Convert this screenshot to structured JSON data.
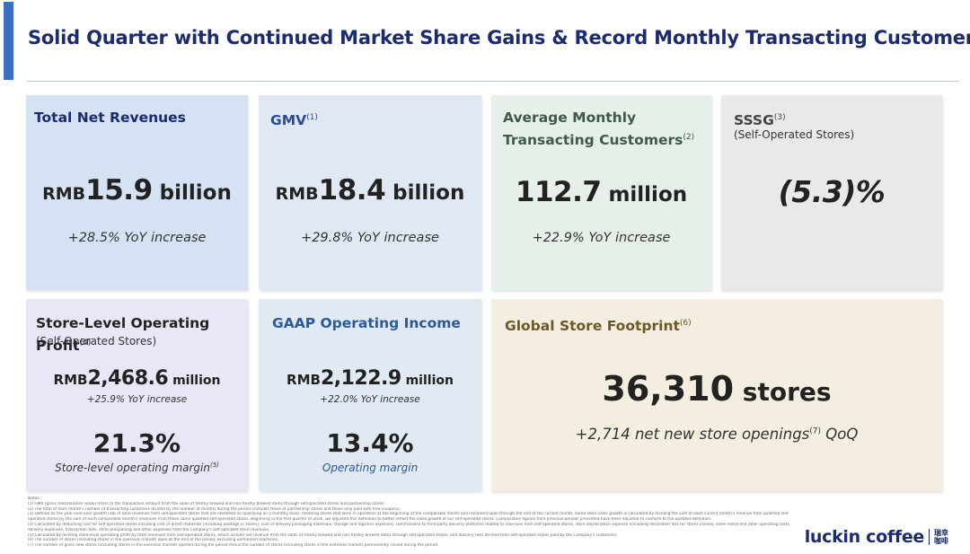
{
  "title": "Solid Quarter with Continued Market Share Gains & Record Monthly Transacting Customers",
  "colors": {
    "brand_navy": "#1c2a6e",
    "accent_blue": "#3b6fc4"
  },
  "cards": {
    "revenue": {
      "heading": "Total Net Revenues",
      "prefix": "RMB",
      "value": "15.9",
      "unit": " billion",
      "yoy": "+28.5% YoY increase"
    },
    "gmv": {
      "heading": "GMV",
      "footnote": "(1)",
      "prefix": "RMB",
      "value": "18.4",
      "unit": " billion",
      "yoy": "+29.8% YoY increase"
    },
    "amtc": {
      "heading_line1": "Average Monthly",
      "heading_line2": "Transacting Customers",
      "footnote": "(2)",
      "value": "112.7",
      "unit": " million",
      "yoy": "+22.9% YoY increase"
    },
    "sssg": {
      "heading": "SSSG",
      "footnote": "(3)",
      "subheading": "(Self-Operated Stores)",
      "value": "(5.3)%"
    },
    "store_profit": {
      "heading": "Store-Level Operating Profit",
      "footnote": "(4)",
      "subheading": "(Self-Operated Stores)",
      "prefix": "RMB",
      "value": "2,468.6",
      "unit": " million",
      "yoy": "+25.9% YoY increase",
      "margin": "21.3%",
      "margin_label": "Store-level operating margin",
      "margin_footnote": "(5)"
    },
    "gaap": {
      "heading": "GAAP Operating Income",
      "prefix": "RMB",
      "value": "2,122.9",
      "unit": " million",
      "yoy": "+22.0% YoY increase",
      "margin": "13.4%",
      "margin_label": "Operating margin"
    },
    "footprint": {
      "heading": "Global Store Footprint",
      "footnote": "(6)",
      "value": "36,310",
      "unit": " stores",
      "net_new_pre": "+2,714 net new store openings",
      "net_new_footnote": "(7)",
      "net_new_post": " QoQ"
    }
  },
  "notes": {
    "label": "Notes:",
    "lines": [
      "(1)    GMV (gross merchandise value) refers to the transaction amount from the sales of freshly brewed and non-freshly brewed items through self-operated stores and partnership stores.",
      "(2)    The total of each month's number of transacting customers divided by the number of months during the period (includes those of partnership stores and those only paid with free-coupons).",
      "(3)    Defined as the year-over-year growth rate of total revenues from self-operated stores that are identified as qualifying on a monthly basis, meaning stores that were in operation at the beginning of the comparable month and remained open through the end of the current month. Same-store sales growth is calculated by dividing the sum of each current month's revenue from qualified self-",
      "        operated stores by the sum of each comparable month's revenues from those same qualified self-operated stores. Beginning in the first quarter of 2026, we adjusted this definition to better reflect the sales growth of our self-operated stores. Comparative figures from previous periods presented have been adjusted to conform to the updated definition.",
      "(4)    Calculated by deducting cost for self-operated stores including cost of direct materials (including wastage in stores), cost of delivery packaging materials, storage and logistics expenses, commissions to third-party delivery platforms related to revenues from self-operated stores, store depreciation expense (including decoration loss for stores closed), store rental and other operating costs,",
      "        delivery expenses, transaction fees, store preopening and other expenses from the Company's self-operated store revenues.",
      "(5)    Calculated by dividing store-level operating profit by total revenues from self-operated stores, which include net revenue from the sales of freshly brewed and non-freshly brewed items through self-operated stores, and delivery fees derived from self-operated stores paid by the Company's customers.",
      "(6)    The number of stores (including stores in the overseas market) open at the end of the period, excluding unmanned machines.",
      "(7)    The number of gross new stores (including stores in the overseas market) opened during the period minus the number of stores (including stores in the overseas market) permanently closed during the period."
    ]
  },
  "logo": {
    "text": "luckin coffee",
    "cn_line1": "瑞幸",
    "cn_line2": "咖啡"
  }
}
